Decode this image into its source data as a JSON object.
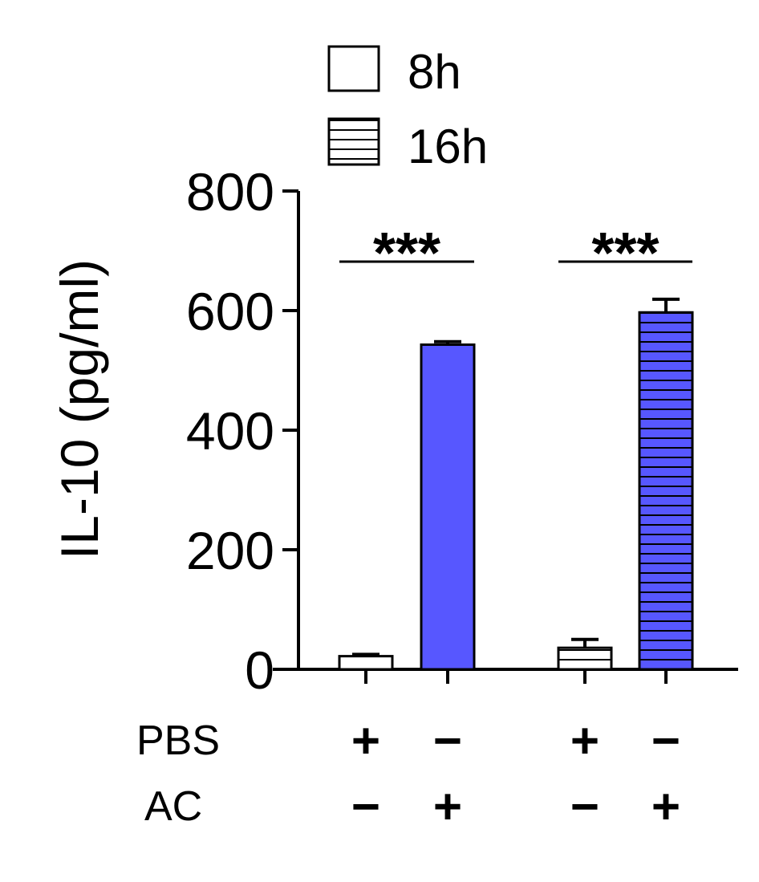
{
  "chart_data": {
    "type": "bar",
    "ylabel": "IL-10 (pg/ml)",
    "ylim": [
      0,
      800
    ],
    "yticks": [
      "0",
      "200",
      "400",
      "600",
      "800"
    ],
    "legend": [
      {
        "label": "8h",
        "pattern": "none"
      },
      {
        "label": "16h",
        "pattern": "horizontal-stripes"
      }
    ],
    "legend_position": "top",
    "bars": [
      {
        "group": "8h",
        "pbs": "+",
        "ac": "−",
        "value": 22,
        "error": 3,
        "color": "#ffffff",
        "pattern": "none"
      },
      {
        "group": "8h",
        "pbs": "−",
        "ac": "+",
        "value": 543,
        "error": 5,
        "color": "#5757ff",
        "pattern": "none"
      },
      {
        "group": "16h",
        "pbs": "+",
        "ac": "−",
        "value": 36,
        "error": 14,
        "color": "#ffffff",
        "pattern": "horizontal-stripes"
      },
      {
        "group": "16h",
        "pbs": "−",
        "ac": "+",
        "value": 597,
        "error": 22,
        "color": "#5757ff",
        "pattern": "horizontal-stripes"
      }
    ],
    "row_labels": [
      "PBS",
      "AC"
    ],
    "significance": [
      {
        "label": "***",
        "bars": [
          0,
          1
        ]
      },
      {
        "label": "***",
        "bars": [
          2,
          3
        ]
      }
    ],
    "grid": false
  }
}
